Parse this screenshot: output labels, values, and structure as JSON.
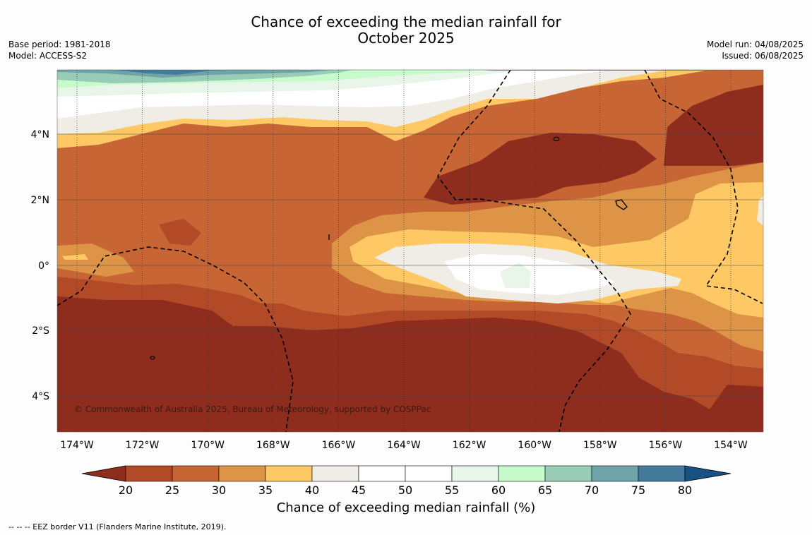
{
  "title": {
    "line1": "Chance of exceeding the median rainfall for",
    "line2": "October 2025"
  },
  "meta_left": {
    "base_period": "Base period: 1981-2018",
    "model": "Model: ACCESS-S2"
  },
  "meta_right": {
    "model_run": "Model run: 04/08/2025",
    "issued": "Issued: 06/08/2025"
  },
  "map": {
    "lat_labels": [
      "4°N",
      "2°N",
      "0°",
      "2°S",
      "4°S"
    ],
    "lon_labels": [
      "174°W",
      "172°W",
      "170°W",
      "168°W",
      "166°W",
      "164°W",
      "162°W",
      "160°W",
      "158°W",
      "156°W",
      "154°W"
    ],
    "copyright": "© Commonwealth of Australia 2025, Bureau of Meteorology, supported by COSPPac",
    "colors": {
      "lt20": "#8e2d1e",
      "c20_25": "#b34a27",
      "c25_30": "#c86534",
      "c30_35": "#dd9447",
      "c35_40": "#fec965",
      "c40_45": "#f0ede6",
      "c45_55": "#ffffff",
      "c55_60": "#e8f5e9",
      "c60_65": "#c7fbcb",
      "c65_70": "#98ccb7",
      "c70_75": "#6ea3a7",
      "c75_80": "#447a9b",
      "gt80": "#185184"
    }
  },
  "colorbar": {
    "ticks": [
      "20",
      "25",
      "30",
      "35",
      "40",
      "45",
      "50",
      "55",
      "60",
      "65",
      "70",
      "75",
      "80"
    ],
    "colors": [
      "#b34a27",
      "#c86534",
      "#dd9447",
      "#fec965",
      "#f0ede6",
      "#ffffff",
      "#ffffff",
      "#e8f5e9",
      "#c7fbcb",
      "#98ccb7",
      "#6ea3a7",
      "#447a9b"
    ],
    "low_color": "#8e2d1e",
    "high_color": "#185184",
    "title": "Chance of exceeding median rainfall (%)"
  },
  "footer": "--  --  -- EEZ border V11 (Flanders Marine Institute, 2019)."
}
